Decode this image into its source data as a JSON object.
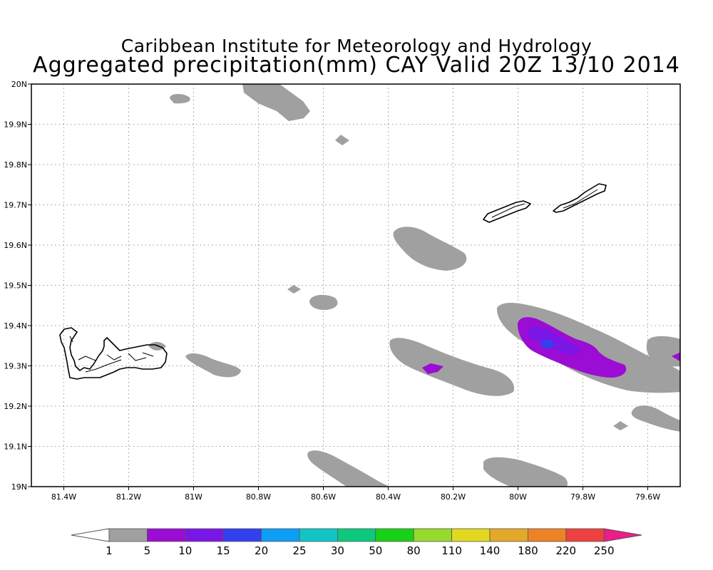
{
  "title": {
    "line1": "Caribbean Institute for Meteorology and Hydrology",
    "line2": "Aggregated precipitation(mm) CAY Valid 20Z 13/10 2014"
  },
  "axes": {
    "lon_min": -81.5,
    "lon_max": -79.5,
    "lat_min": 19.0,
    "lat_max": 20.0,
    "x_ticks": [
      {
        "value": -81.4,
        "label": "81.4W"
      },
      {
        "value": -81.2,
        "label": "81.2W"
      },
      {
        "value": -81.0,
        "label": "81W"
      },
      {
        "value": -80.8,
        "label": "80.8W"
      },
      {
        "value": -80.6,
        "label": "80.6W"
      },
      {
        "value": -80.4,
        "label": "80.4W"
      },
      {
        "value": -80.2,
        "label": "80.2W"
      },
      {
        "value": -80.0,
        "label": "80W"
      },
      {
        "value": -79.8,
        "label": "79.8W"
      },
      {
        "value": -79.6,
        "label": "79.6W"
      }
    ],
    "y_ticks": [
      {
        "value": 19.0,
        "label": "19N"
      },
      {
        "value": 19.1,
        "label": "19.1N"
      },
      {
        "value": 19.2,
        "label": "19.2N"
      },
      {
        "value": 19.3,
        "label": "19.3N"
      },
      {
        "value": 19.4,
        "label": "19.4N"
      },
      {
        "value": 19.5,
        "label": "19.5N"
      },
      {
        "value": 19.6,
        "label": "19.6N"
      },
      {
        "value": 19.7,
        "label": "19.7N"
      },
      {
        "value": 19.8,
        "label": "19.8N"
      },
      {
        "value": 19.9,
        "label": "19.9N"
      },
      {
        "value": 20.0,
        "label": "20N"
      }
    ]
  },
  "colorbar": {
    "labels": [
      "1",
      "5",
      "10",
      "15",
      "20",
      "25",
      "30",
      "50",
      "80",
      "110",
      "140",
      "180",
      "220",
      "250"
    ],
    "colors": [
      "#a0a0a0",
      "#9b0cd4",
      "#7a16e6",
      "#3240f0",
      "#0e9ef5",
      "#12c4c4",
      "#0ec87e",
      "#18d218",
      "#98da2c",
      "#e2d822",
      "#e3a82a",
      "#ed8326",
      "#ee4040"
    ],
    "under_color": "#ffffff",
    "over_color": "#ee1b8a"
  },
  "colors": {
    "rain_light": "#a0a0a0",
    "rain_5_10": "#9b0cd4",
    "rain_10_15": "#7a16e6",
    "rain_15_20": "#3240f0"
  }
}
